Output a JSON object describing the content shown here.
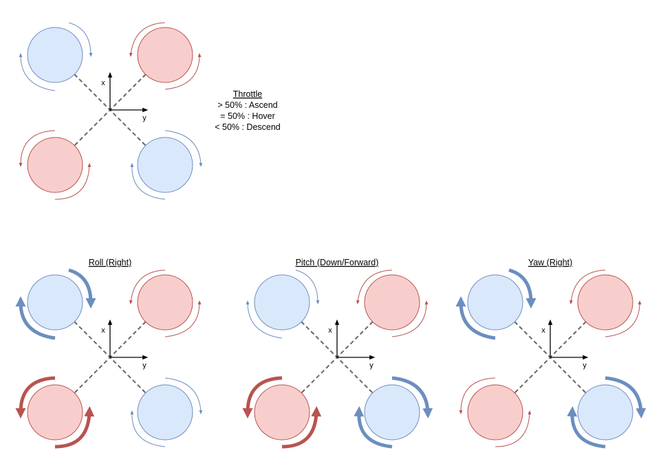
{
  "colors": {
    "blue_fill": "#dae8fc",
    "blue_stroke": "#6c8ebf",
    "red_fill": "#f8cecc",
    "red_stroke": "#b85450",
    "frame": "#666666",
    "axis": "#000000"
  },
  "axis_labels": {
    "x": "x",
    "y": "y"
  },
  "throttle": {
    "title": "Throttle",
    "lines": [
      "> 50% : Ascend",
      "= 50% : Hover",
      "< 50% : Descend"
    ]
  },
  "diagrams": [
    {
      "id": "hover",
      "title": "",
      "rotors": [
        {
          "pos": "front-left",
          "color": "blue",
          "spin": "cw",
          "thrust": "normal"
        },
        {
          "pos": "front-right",
          "color": "red",
          "spin": "ccw",
          "thrust": "normal"
        },
        {
          "pos": "rear-left",
          "color": "red",
          "spin": "ccw",
          "thrust": "normal"
        },
        {
          "pos": "rear-right",
          "color": "blue",
          "spin": "cw",
          "thrust": "normal"
        }
      ]
    },
    {
      "id": "roll",
      "title": "Roll (Right)",
      "rotors": [
        {
          "pos": "front-left",
          "color": "blue",
          "spin": "cw",
          "thrust": "high"
        },
        {
          "pos": "front-right",
          "color": "red",
          "spin": "ccw",
          "thrust": "normal"
        },
        {
          "pos": "rear-left",
          "color": "red",
          "spin": "ccw",
          "thrust": "high"
        },
        {
          "pos": "rear-right",
          "color": "blue",
          "spin": "cw",
          "thrust": "normal"
        }
      ]
    },
    {
      "id": "pitch",
      "title": "Pitch (Down/Forward)",
      "rotors": [
        {
          "pos": "front-left",
          "color": "blue",
          "spin": "cw",
          "thrust": "normal"
        },
        {
          "pos": "front-right",
          "color": "red",
          "spin": "ccw",
          "thrust": "normal"
        },
        {
          "pos": "rear-left",
          "color": "red",
          "spin": "ccw",
          "thrust": "high"
        },
        {
          "pos": "rear-right",
          "color": "blue",
          "spin": "cw",
          "thrust": "high"
        }
      ]
    },
    {
      "id": "yaw",
      "title": "Yaw (Right)",
      "rotors": [
        {
          "pos": "front-left",
          "color": "blue",
          "spin": "cw",
          "thrust": "high"
        },
        {
          "pos": "front-right",
          "color": "red",
          "spin": "ccw",
          "thrust": "normal"
        },
        {
          "pos": "rear-left",
          "color": "red",
          "spin": "ccw",
          "thrust": "normal"
        },
        {
          "pos": "rear-right",
          "color": "blue",
          "spin": "cw",
          "thrust": "high"
        }
      ]
    }
  ]
}
